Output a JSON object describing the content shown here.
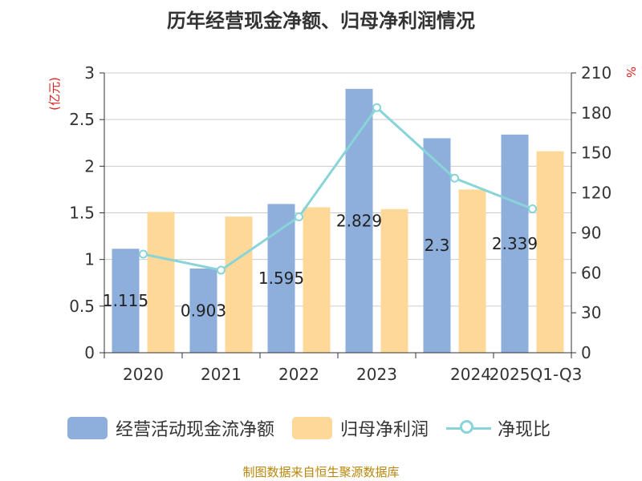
{
  "title": "历年经营现金净额、归母净利润情况",
  "colors": {
    "bar_cash": "#8eaedc",
    "bar_profit": "#fdd898",
    "line": "#88d4d8",
    "axis_unit": "#e02020",
    "axis_text": "#333333",
    "grid": "#cccccc",
    "source": "#b8860b"
  },
  "chart_data": {
    "type": "bar",
    "categories": [
      "2020",
      "2021",
      "2022",
      "2023",
      "2024",
      "2025Q1-Q3"
    ],
    "series": [
      {
        "name": "经营活动现金流净额",
        "type": "bar",
        "axis": "left",
        "values": [
          1.115,
          0.903,
          1.595,
          2.829,
          2.3,
          2.339
        ],
        "labels": [
          "1.115",
          "0.903",
          "1.595",
          "2.829",
          "2.3",
          "2.339"
        ]
      },
      {
        "name": "归母净利润",
        "type": "bar",
        "axis": "left",
        "values": [
          1.51,
          1.46,
          1.56,
          1.54,
          1.75,
          2.16
        ]
      },
      {
        "name": "净现比",
        "type": "line",
        "axis": "right",
        "values": [
          74,
          62,
          102,
          184,
          131,
          108
        ]
      }
    ],
    "y_left": {
      "label": "(亿元)",
      "min": 0,
      "max": 3,
      "ticks": [
        "0",
        "0.5",
        "1",
        "1.5",
        "2",
        "2.5",
        "3"
      ]
    },
    "y_right": {
      "label": "%",
      "min": 0,
      "max": 210,
      "ticks": [
        "0",
        "30",
        "60",
        "90",
        "120",
        "150",
        "180",
        "210"
      ]
    },
    "grid": true,
    "legend_position": "bottom"
  },
  "legend": {
    "cash_label": "经营活动现金流净额",
    "profit_label": "归母净利润",
    "ratio_label": "净现比"
  },
  "source": "制图数据来自恒生聚源数据库"
}
